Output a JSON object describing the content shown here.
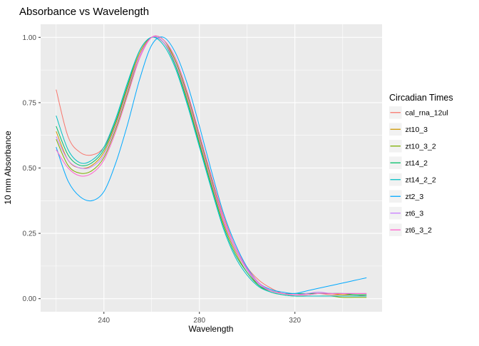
{
  "chart_data": {
    "type": "line",
    "title": "Absorbance vs Wavelength",
    "xlabel": "Wavelength",
    "ylabel": "10 mm Absorbance",
    "legend_title": "Circadian Times",
    "legend_position": "right",
    "grid": true,
    "panel_bg": "#EBEBEB",
    "grid_color": "#FFFFFF",
    "tick_color": "#333333",
    "tick_label_color": "#4D4D4D",
    "xlim": [
      213.5,
      356.5
    ],
    "ylim": [
      -0.05,
      1.05
    ],
    "x_ticks": [
      240,
      280,
      320
    ],
    "x_tick_labels": [
      "240",
      "280",
      "320"
    ],
    "x_minor": [
      220,
      260,
      300,
      340
    ],
    "y_ticks": [
      0,
      0.25,
      0.5,
      0.75,
      1
    ],
    "y_tick_labels": [
      "0.00",
      "0.25",
      "0.50",
      "0.75",
      "1.00"
    ],
    "y_minor": [
      0.125,
      0.375,
      0.625,
      0.875
    ],
    "x": [
      220,
      225,
      230,
      235,
      240,
      245,
      250,
      255,
      260,
      265,
      270,
      275,
      280,
      285,
      290,
      295,
      300,
      305,
      310,
      315,
      320,
      325,
      330,
      335,
      340,
      345,
      350
    ],
    "series": [
      {
        "name": "cal_rna_12ul",
        "color": "#F8766D",
        "values": [
          0.8,
          0.62,
          0.56,
          0.55,
          0.58,
          0.68,
          0.81,
          0.94,
          1.0,
          0.98,
          0.91,
          0.78,
          0.63,
          0.47,
          0.32,
          0.2,
          0.12,
          0.07,
          0.04,
          0.02,
          0.015,
          0.02,
          0.02,
          0.015,
          0.015,
          0.015,
          0.01
        ]
      },
      {
        "name": "zt10_3",
        "color": "#CD9600",
        "values": [
          0.64,
          0.53,
          0.5,
          0.51,
          0.56,
          0.67,
          0.81,
          0.94,
          1.0,
          0.98,
          0.9,
          0.76,
          0.6,
          0.44,
          0.29,
          0.18,
          0.1,
          0.05,
          0.03,
          0.02,
          0.015,
          0.015,
          0.02,
          0.02,
          0.015,
          0.015,
          0.015
        ]
      },
      {
        "name": "zt10_3_2",
        "color": "#7CAE00",
        "values": [
          0.61,
          0.51,
          0.48,
          0.49,
          0.54,
          0.65,
          0.79,
          0.93,
          1.0,
          0.99,
          0.91,
          0.78,
          0.62,
          0.46,
          0.3,
          0.19,
          0.11,
          0.05,
          0.025,
          0.015,
          0.01,
          0.01,
          0.01,
          0.01,
          0.005,
          0.005,
          0.005
        ]
      },
      {
        "name": "zt14_2",
        "color": "#00BE67",
        "values": [
          0.66,
          0.55,
          0.51,
          0.52,
          0.57,
          0.68,
          0.82,
          0.95,
          1.0,
          0.98,
          0.89,
          0.75,
          0.59,
          0.43,
          0.28,
          0.17,
          0.1,
          0.05,
          0.03,
          0.02,
          0.02,
          0.02,
          0.02,
          0.02,
          0.02,
          0.015,
          0.015
        ]
      },
      {
        "name": "zt14_2_2",
        "color": "#00BFC4",
        "values": [
          0.7,
          0.57,
          0.52,
          0.53,
          0.58,
          0.69,
          0.83,
          0.95,
          1.0,
          0.97,
          0.88,
          0.74,
          0.58,
          0.42,
          0.27,
          0.16,
          0.09,
          0.045,
          0.025,
          0.015,
          0.01,
          0.01,
          0.01,
          0.01,
          0.01,
          0.01,
          0.01
        ]
      },
      {
        "name": "zt2_3",
        "color": "#00A9FF",
        "values": [
          0.58,
          0.45,
          0.39,
          0.375,
          0.41,
          0.52,
          0.67,
          0.84,
          0.97,
          1.0,
          0.94,
          0.82,
          0.66,
          0.49,
          0.33,
          0.21,
          0.12,
          0.06,
          0.035,
          0.025,
          0.02,
          0.03,
          0.04,
          0.05,
          0.06,
          0.07,
          0.08
        ]
      },
      {
        "name": "zt6_3",
        "color": "#C77CFF",
        "values": [
          0.62,
          0.53,
          0.5,
          0.505,
          0.55,
          0.66,
          0.8,
          0.93,
          1.0,
          0.98,
          0.9,
          0.77,
          0.61,
          0.45,
          0.3,
          0.19,
          0.11,
          0.055,
          0.03,
          0.02,
          0.015,
          0.02,
          0.025,
          0.02,
          0.02,
          0.02,
          0.02
        ]
      },
      {
        "name": "zt6_3_2",
        "color": "#FF61CC",
        "values": [
          0.57,
          0.5,
          0.47,
          0.48,
          0.53,
          0.64,
          0.78,
          0.92,
          1.0,
          0.99,
          0.92,
          0.79,
          0.63,
          0.47,
          0.31,
          0.2,
          0.115,
          0.06,
          0.03,
          0.02,
          0.015,
          0.015,
          0.02,
          0.02,
          0.02,
          0.02,
          0.02
        ]
      }
    ]
  }
}
